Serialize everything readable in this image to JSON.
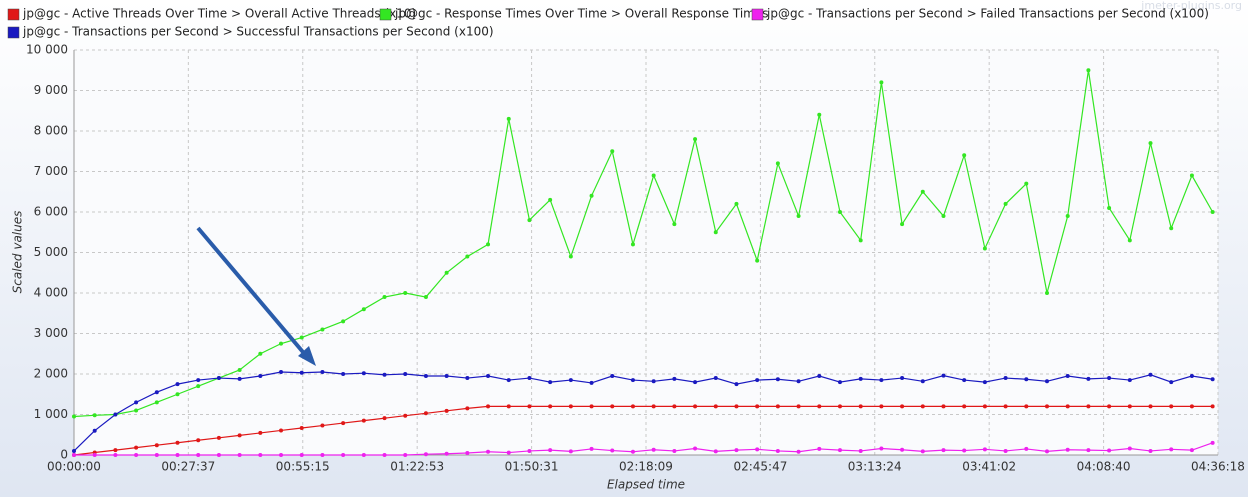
{
  "chart_data": {
    "type": "line",
    "ylabel": "Scaled values",
    "xlabel": "Elapsed time",
    "watermark": "jmeter-plugins.org",
    "grid": true,
    "legend": "top",
    "x": [
      0,
      300,
      600,
      900,
      1200,
      1500,
      1800,
      2100,
      2400,
      2700,
      3000,
      3300,
      3600,
      3900,
      4200,
      4500,
      4800,
      5100,
      5400,
      5700,
      6000,
      6300,
      6600,
      6900,
      7200,
      7500,
      7800,
      8100,
      8400,
      8700,
      9000,
      9300,
      9600,
      9900,
      10200,
      10500,
      10800,
      11100,
      11400,
      11700,
      12000,
      12300,
      12600,
      12900,
      13200,
      13500,
      13800,
      14100,
      14400,
      14700,
      15000,
      15300,
      15600,
      15900,
      16200,
      16500
    ],
    "xlim": [
      0,
      16578
    ],
    "xticks": [
      {
        "value": 0,
        "label": "00:00:00"
      },
      {
        "value": 1657,
        "label": "00:27:37"
      },
      {
        "value": 3315,
        "label": "00:55:15"
      },
      {
        "value": 4973,
        "label": "01:22:53"
      },
      {
        "value": 6631,
        "label": "01:50:31"
      },
      {
        "value": 8289,
        "label": "02:18:09"
      },
      {
        "value": 9947,
        "label": "02:45:47"
      },
      {
        "value": 11604,
        "label": "03:13:24"
      },
      {
        "value": 13262,
        "label": "03:41:02"
      },
      {
        "value": 14920,
        "label": "04:08:40"
      },
      {
        "value": 16578,
        "label": "04:36:18"
      }
    ],
    "ylim": [
      0,
      10000
    ],
    "yticks": [
      0,
      {
        "value": 1000,
        "label": "1 000"
      },
      {
        "value": 2000,
        "label": "2 000"
      },
      {
        "value": 3000,
        "label": "3 000"
      },
      {
        "value": 4000,
        "label": "4 000"
      },
      {
        "value": 5000,
        "label": "5 000"
      },
      {
        "value": 6000,
        "label": "6 000"
      },
      {
        "value": 7000,
        "label": "7 000"
      },
      {
        "value": 8000,
        "label": "8 000"
      },
      {
        "value": 9000,
        "label": "9 000"
      },
      {
        "value": 10000,
        "label": "10 000"
      }
    ],
    "series": [
      {
        "name": "jp@gc - Active Threads Over Time > Overall Active Threads (x10)",
        "color": "#e01818",
        "values": [
          0,
          61,
          121,
          182,
          242,
          303,
          364,
          424,
          485,
          545,
          606,
          667,
          727,
          788,
          848,
          909,
          970,
          1030,
          1091,
          1151,
          1200,
          1200,
          1200,
          1200,
          1200,
          1200,
          1200,
          1200,
          1200,
          1200,
          1200,
          1200,
          1200,
          1200,
          1200,
          1200,
          1200,
          1200,
          1200,
          1200,
          1200,
          1200,
          1200,
          1200,
          1200,
          1200,
          1200,
          1200,
          1200,
          1200,
          1200,
          1200,
          1200,
          1200,
          1200,
          1200
        ]
      },
      {
        "name": "jp@gc - Response Times Over Time > Overall Response Times",
        "color": "#33e622",
        "values": [
          950,
          980,
          1000,
          1100,
          1300,
          1500,
          1700,
          1900,
          2100,
          2500,
          2750,
          2900,
          3100,
          3300,
          3600,
          3900,
          4000,
          3900,
          4500,
          4900,
          5200,
          8300,
          5800,
          6300,
          4900,
          6400,
          7500,
          5200,
          6900,
          5700,
          7800,
          5500,
          6200,
          4800,
          7200,
          5900,
          8400,
          6000,
          5300,
          9200,
          5700,
          6500,
          5900,
          7400,
          5100,
          6200,
          6700,
          4000,
          5900,
          9500,
          6100,
          5300,
          7700,
          5600,
          6900,
          6000
        ]
      },
      {
        "name": "jp@gc - Transactions per Second > Failed Transactions per Second (x100)",
        "color": "#ee22ee",
        "values": [
          0,
          0,
          0,
          0,
          0,
          0,
          0,
          0,
          0,
          0,
          0,
          0,
          0,
          0,
          0,
          0,
          0,
          20,
          30,
          50,
          80,
          60,
          100,
          120,
          90,
          150,
          110,
          80,
          130,
          100,
          160,
          90,
          120,
          140,
          100,
          80,
          150,
          120,
          100,
          160,
          130,
          90,
          120,
          110,
          140,
          100,
          150,
          90,
          130,
          120,
          110,
          160,
          100,
          140,
          120,
          300
        ]
      },
      {
        "name": "jp@gc - Transactions per Second > Successful Transactions per Second (x100)",
        "color": "#1a1ac0",
        "values": [
          100,
          600,
          1000,
          1300,
          1550,
          1750,
          1850,
          1900,
          1880,
          1950,
          2050,
          2030,
          2050,
          2000,
          2020,
          1980,
          2000,
          1950,
          1950,
          1900,
          1950,
          1850,
          1900,
          1800,
          1850,
          1780,
          1950,
          1850,
          1820,
          1880,
          1800,
          1900,
          1750,
          1850,
          1870,
          1820,
          1950,
          1800,
          1880,
          1850,
          1900,
          1820,
          1960,
          1850,
          1800,
          1900,
          1870,
          1820,
          1950,
          1880,
          1900,
          1850,
          1980,
          1800,
          1950,
          1870
        ]
      }
    ]
  }
}
